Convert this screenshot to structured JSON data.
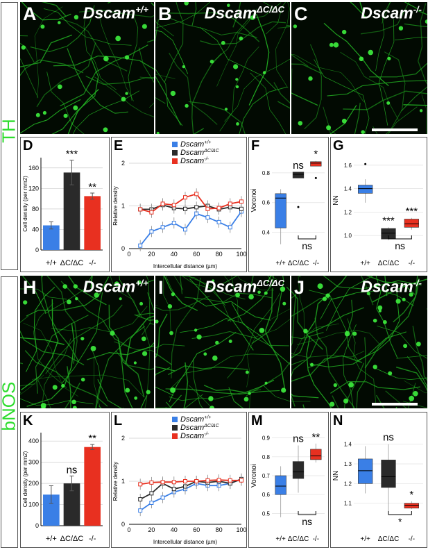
{
  "figure": {
    "micrographs": [
      {
        "panel": "A",
        "genotype_base": "Dscam",
        "genotype_sup": "+/+"
      },
      {
        "panel": "B",
        "genotype_base": "Dscam",
        "genotype_sup": "ΔC/ΔC"
      },
      {
        "panel": "C",
        "genotype_base": "Dscam",
        "genotype_sup": "-/-"
      },
      {
        "panel": "H",
        "genotype_base": "Dscam",
        "genotype_sup": "+/+"
      },
      {
        "panel": "I",
        "genotype_base": "Dscam",
        "genotype_sup": "ΔC/ΔC"
      },
      {
        "panel": "J",
        "genotype_base": "Dscam",
        "genotype_sup": "-/-"
      }
    ],
    "group_labels": [
      "TH",
      "bNOS"
    ],
    "colors": {
      "wt": "#3a7fe6",
      "dc": "#2a2a2a",
      "ko": "#e83020",
      "fluor": "#2ddc2d"
    }
  },
  "chart_data": [
    {
      "panel": "D",
      "type": "bar",
      "categories": [
        "+/+",
        "ΔC/ΔC",
        "-/-"
      ],
      "values": [
        48,
        151,
        105
      ],
      "errors": [
        7,
        24,
        6
      ],
      "ylabel": "Cell density (per mm2)",
      "yticks": [
        "0",
        "40",
        "80",
        "120",
        "160"
      ],
      "ylim": [
        0,
        180
      ],
      "annotations": [
        "",
        "***",
        "**"
      ]
    },
    {
      "panel": "E",
      "type": "line",
      "xlabel": "Intercellular distance (µm)",
      "ylabel": "Relative density",
      "xticks": [
        "0",
        "20",
        "40",
        "60",
        "80",
        "100"
      ],
      "yticks": [
        "0",
        "1",
        "2"
      ],
      "xlim": [
        0,
        100
      ],
      "ylim": [
        0,
        2
      ],
      "legend": [
        {
          "base": "Dscam",
          "sup": "+/+"
        },
        {
          "base": "Dscam",
          "sup": "ΔC/ΔC"
        },
        {
          "base": "Dscam",
          "sup": "-/-"
        }
      ],
      "series": [
        {
          "name": "+/+",
          "x": [
            10,
            20,
            30,
            40,
            50,
            60,
            70,
            80,
            90,
            100
          ],
          "y": [
            0.07,
            0.4,
            0.5,
            0.6,
            0.45,
            0.82,
            0.73,
            0.62,
            0.5,
            0.87
          ]
        },
        {
          "name": "ΔC/ΔC",
          "x": [
            10,
            20,
            30,
            40,
            50,
            60,
            70,
            80,
            90,
            100
          ],
          "y": [
            0.92,
            0.92,
            1.02,
            0.95,
            0.93,
            0.97,
            1.0,
            0.92,
            0.97,
            0.93
          ]
        },
        {
          "name": "-/-",
          "x": [
            10,
            20,
            30,
            40,
            50,
            60,
            70,
            80,
            90,
            100
          ],
          "y": [
            0.92,
            0.85,
            1.05,
            1.02,
            1.2,
            1.28,
            0.93,
            0.95,
            1.05,
            1.1
          ]
        }
      ]
    },
    {
      "panel": "F",
      "type": "box",
      "ylabel": "Voronoi",
      "categories": [
        "+/+",
        "ΔC/ΔC",
        "-/-"
      ],
      "yticks": [
        "0.4",
        "0.6",
        "0.8"
      ],
      "ylim": [
        0.3,
        0.93
      ],
      "boxes": [
        {
          "q1": 0.43,
          "median": 0.63,
          "q3": 0.66,
          "min": 0.32,
          "max": 0.69,
          "out": []
        },
        {
          "q1": 0.765,
          "median": 0.79,
          "q3": 0.805,
          "min": 0.765,
          "max": 0.805,
          "out": [
            0.57
          ]
        },
        {
          "q1": 0.845,
          "median": 0.865,
          "q3": 0.875,
          "min": 0.845,
          "max": 0.88,
          "out": [
            0.765
          ]
        }
      ],
      "annotations": [
        "",
        "ns",
        "*"
      ],
      "bracket_label": "ns"
    },
    {
      "panel": "G",
      "type": "box",
      "ylabel": "NN",
      "categories": [
        "+/+",
        "ΔC/ΔC",
        "-/-"
      ],
      "yticks": [
        "1.0",
        "1.2",
        "1.4",
        "1.6"
      ],
      "ylim": [
        0.9,
        1.7
      ],
      "boxes": [
        {
          "q1": 1.36,
          "median": 1.4,
          "q3": 1.43,
          "min": 1.28,
          "max": 1.48,
          "out": [
            1.61
          ]
        },
        {
          "q1": 0.97,
          "median": 1.02,
          "q3": 1.06,
          "min": 0.96,
          "max": 1.07,
          "out": []
        },
        {
          "q1": 1.07,
          "median": 1.1,
          "q3": 1.14,
          "min": 1.05,
          "max": 1.15,
          "out": []
        }
      ],
      "annotations": [
        "",
        "***",
        "***"
      ],
      "bracket_label": "ns"
    },
    {
      "panel": "K",
      "type": "bar",
      "categories": [
        "+/+",
        "ΔC/ΔC",
        "-/-"
      ],
      "values": [
        147,
        200,
        372
      ],
      "errors": [
        42,
        35,
        12
      ],
      "ylabel": "Cell density (per mm2)",
      "yticks": [
        "0",
        "100",
        "200",
        "300",
        "400"
      ],
      "ylim": [
        0,
        440
      ],
      "annotations": [
        "",
        "ns",
        "**"
      ]
    },
    {
      "panel": "L",
      "type": "line",
      "xlabel": "Intercellular distance (µm)",
      "ylabel": "Relative density",
      "xticks": [
        "0",
        "20",
        "40",
        "60",
        "80",
        "100"
      ],
      "yticks": [
        "0",
        "1",
        "2"
      ],
      "xlim": [
        0,
        100
      ],
      "ylim": [
        0,
        2
      ],
      "legend": [
        {
          "base": "Dscam",
          "sup": "+/+"
        },
        {
          "base": "Dscam",
          "sup": "ΔC/ΔC"
        },
        {
          "base": "Dscam",
          "sup": "-/-"
        }
      ],
      "series": [
        {
          "name": "+/+",
          "x": [
            10,
            20,
            30,
            40,
            50,
            60,
            70,
            80,
            90,
            100
          ],
          "y": [
            0.32,
            0.5,
            0.62,
            0.75,
            0.82,
            0.95,
            0.9,
            0.9,
            0.95,
            1.05
          ]
        },
        {
          "name": "ΔC/ΔC",
          "x": [
            10,
            20,
            30,
            40,
            50,
            60,
            70,
            80,
            90,
            100
          ],
          "y": [
            0.58,
            0.72,
            0.95,
            0.82,
            0.88,
            1.0,
            0.97,
            1.0,
            0.95,
            1.05
          ]
        },
        {
          "name": "-/-",
          "x": [
            10,
            20,
            30,
            40,
            50,
            60,
            70,
            80,
            90,
            100
          ],
          "y": [
            0.93,
            0.97,
            0.98,
            0.98,
            1.0,
            1.0,
            1.02,
            1.03,
            1.02,
            1.02
          ]
        }
      ]
    },
    {
      "panel": "M",
      "type": "box",
      "ylabel": "Voronoi",
      "categories": [
        "+/+",
        "ΔC/ΔC",
        "-/-"
      ],
      "yticks": [
        "0.5",
        "0.6",
        "0.7",
        "0.8",
        "0.9"
      ],
      "ylim": [
        0.45,
        0.95
      ],
      "boxes": [
        {
          "q1": 0.6,
          "median": 0.645,
          "q3": 0.7,
          "min": 0.48,
          "max": 0.75,
          "out": []
        },
        {
          "q1": 0.685,
          "median": 0.72,
          "q3": 0.775,
          "min": 0.61,
          "max": 0.86,
          "out": []
        },
        {
          "q1": 0.785,
          "median": 0.805,
          "q3": 0.84,
          "min": 0.77,
          "max": 0.87,
          "out": []
        }
      ],
      "annotations": [
        "",
        "ns",
        "**"
      ],
      "bracket_label": "ns"
    },
    {
      "panel": "N",
      "type": "box",
      "ylabel": "NN",
      "categories": [
        "+/+",
        "ΔC/ΔC",
        "-/-"
      ],
      "yticks": [
        "1.1",
        "1.2",
        "1.3",
        "1.4"
      ],
      "ylim": [
        1.0,
        1.48
      ],
      "boxes": [
        {
          "q1": 1.2,
          "median": 1.265,
          "q3": 1.325,
          "min": 1.15,
          "max": 1.39,
          "out": []
        },
        {
          "q1": 1.18,
          "median": 1.235,
          "q3": 1.32,
          "min": 1.06,
          "max": 1.4,
          "out": []
        },
        {
          "q1": 1.075,
          "median": 1.09,
          "q3": 1.1,
          "min": 1.07,
          "max": 1.11,
          "out": []
        }
      ],
      "annotations": [
        "",
        "ns",
        "*"
      ],
      "bracket_label": "*"
    }
  ]
}
